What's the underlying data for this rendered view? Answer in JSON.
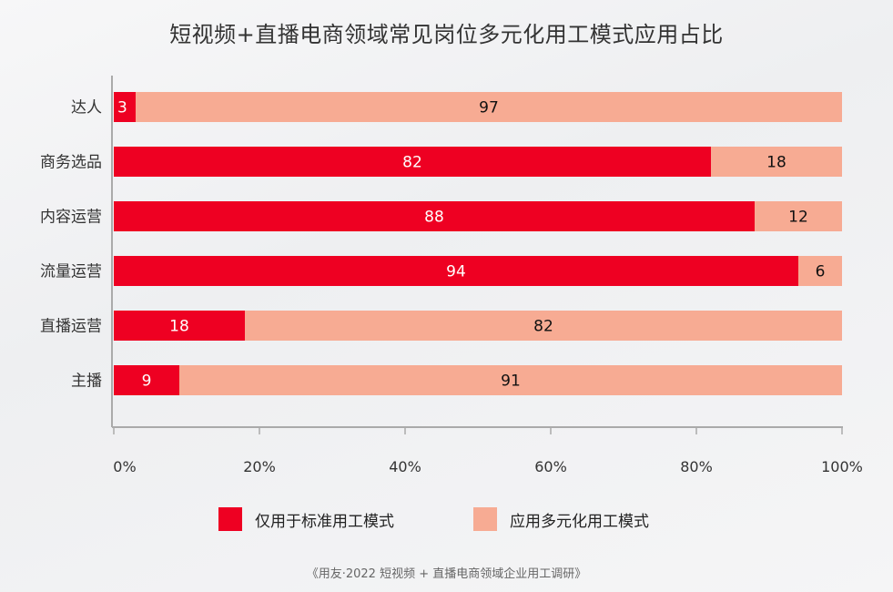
{
  "chart_data": {
    "type": "bar",
    "orientation": "horizontal",
    "stacked": true,
    "title": "短视频+直播电商领域常见岗位多元化用工模式应用占比",
    "categories": [
      "达人",
      "商务选品",
      "内容运营",
      "流量运营",
      "直播运营",
      "主播"
    ],
    "series": [
      {
        "name": "仅用于标准用工模式",
        "values": [
          3,
          82,
          88,
          94,
          18,
          9
        ],
        "color": "#ee0022"
      },
      {
        "name": "应用多元化用工模式",
        "values": [
          97,
          18,
          12,
          6,
          82,
          91
        ],
        "color": "#f7ab93"
      }
    ],
    "xlim": [
      0,
      100
    ],
    "xticks": [
      "0%",
      "20%",
      "40%",
      "60%",
      "80%",
      "100%"
    ],
    "grid": false,
    "legend": "bottom",
    "source": "《用友·2022 短视频 + 直播电商领域企业用工调研》"
  }
}
